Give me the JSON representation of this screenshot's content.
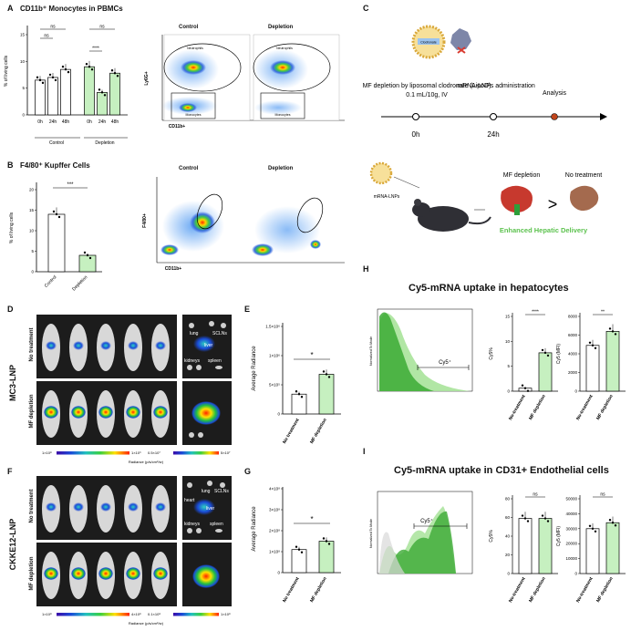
{
  "panels": {
    "A": "A",
    "B": "B",
    "C": "C",
    "D": "D",
    "E": "E",
    "F": "F",
    "G": "G",
    "H": "H",
    "I": "I"
  },
  "A": {
    "title": "CD11b⁺ Monocytes in PBMCs",
    "ylabel": "% of living cells",
    "yticks": [
      "0",
      "5",
      "10",
      "15"
    ],
    "xticks": [
      "0h",
      "24h",
      "48h",
      "0h",
      "24h",
      "48h"
    ],
    "groups": [
      "Control",
      "Depletion"
    ],
    "sig": [
      "ns",
      "ns",
      "****",
      "ns"
    ],
    "flow_titles": [
      "Control",
      "Depletion"
    ],
    "flow_y": "Ly6G+",
    "flow_x": "CD11b+",
    "gate_neutrophils": "Neutrophils",
    "gate_monocytes": "Monocytes"
  },
  "B": {
    "title": "F4/80⁺ Kupffer Cells",
    "ylabel": "% of living cells",
    "yticks": [
      "0",
      "5",
      "10",
      "15",
      "20"
    ],
    "xticks": [
      "Control",
      "Depletion"
    ],
    "sig": "***",
    "flow_titles": [
      "Control",
      "Depletion"
    ],
    "flow_y": "F4/80+",
    "flow_x": "CD11b+"
  },
  "C": {
    "drug_label": "Clodronate",
    "step1": "MF depletion by liposomal clodronate (LipoD)",
    "step1_dose": "0.1 mL/10g, IV",
    "step2": "mRNA-LNPs administration",
    "step3": "Analysis",
    "t0": "0h",
    "t1": "24h",
    "lnp_label": "mRNA-LNPs",
    "mf_depletion": "MF depletion",
    "no_treatment": "No treatment",
    "gt": ">",
    "enhanced": "Enhanced Hepatic Delivery"
  },
  "D": {
    "side_label": "MC3-LNP",
    "rows": [
      "No treatment",
      "MF depletion"
    ],
    "organs": [
      "lung",
      "SCLNs",
      "liver",
      "kidneys",
      "spleen"
    ],
    "scale1": [
      "1×10⁸",
      "1×10⁹"
    ],
    "scale2": [
      "0.5×10⁷",
      "5×10⁷"
    ],
    "radiance_label": "Radiance (p/s/cm²/sr)"
  },
  "E": {
    "ylabel": "Average Radiance",
    "yticks": [
      "0",
      "5×10⁵",
      "1×10⁶",
      "1.5×10⁶"
    ],
    "xticks": [
      "No treatment",
      "MF depletion"
    ],
    "sig": "*"
  },
  "F": {
    "side_label": "CKKE12-LNP",
    "rows": [
      "No treatment",
      "MF depletion"
    ],
    "organs": [
      "heart",
      "lung",
      "SCLNs",
      "liver",
      "kidneys",
      "spleen"
    ],
    "scale1": [
      "1×10⁸",
      "4×10⁸"
    ],
    "scale2": [
      "0.1×10⁸",
      "1×10⁸"
    ],
    "radiance_label": "Radiance (p/s/cm²/sr)"
  },
  "G": {
    "ylabel": "Average Radiance",
    "yticks": [
      "0",
      "1×10⁸",
      "2×10⁸",
      "3×10⁸",
      "4×10⁸"
    ],
    "xticks": [
      "No treatment",
      "MF depletion"
    ],
    "sig": "*"
  },
  "H": {
    "title": "Cy5-mRNA uptake in hepatocytes",
    "hist_y": "Normalized To Mode",
    "gate": "Cy5⁺",
    "bar1_ylabel": "Cy5%",
    "bar1_yticks": [
      "0",
      "5",
      "10",
      "15"
    ],
    "bar1_sig": "****",
    "bar2_ylabel": "Cy5 (MFI)",
    "bar2_yticks": [
      "0",
      "2000",
      "4000",
      "6000",
      "8000"
    ],
    "bar2_sig": "**",
    "xticks": [
      "No-treatment",
      "MF depletion"
    ]
  },
  "I": {
    "title": "Cy5-mRNA uptake  in CD31+ Endothelial cells",
    "hist_y": "Normalized To Mode",
    "gate": "Cy5⁺",
    "bar1_ylabel": "Cy5%",
    "bar1_yticks": [
      "0",
      "20",
      "40",
      "60",
      "80"
    ],
    "bar1_sig": "ns",
    "bar2_ylabel": "Cy5 (MFI)",
    "bar2_yticks": [
      "0",
      "10000",
      "20000",
      "30000",
      "40000",
      "50000"
    ],
    "bar2_sig": "ns",
    "xticks": [
      "No-treatment",
      "MF depletion"
    ]
  },
  "colors": {
    "control": "#ffffff",
    "depletion": "#c6f0c0",
    "accent_green": "#5cc24e",
    "analysis_dot": "#c0451c"
  },
  "chart_data": [
    {
      "type": "bar",
      "panel": "A",
      "categories": [
        "Control 0h",
        "Control 24h",
        "Control 48h",
        "Depletion 0h",
        "Depletion 24h",
        "Depletion 48h"
      ],
      "values": [
        6.5,
        7,
        8.5,
        9,
        4.2,
        7.8
      ],
      "ylabel": "% of living cells",
      "ylim": [
        0,
        15
      ]
    },
    {
      "type": "bar",
      "panel": "B",
      "categories": [
        "Control",
        "Depletion"
      ],
      "values": [
        14,
        4
      ],
      "ylabel": "% of living cells",
      "ylim": [
        0,
        20
      ]
    },
    {
      "type": "bar",
      "panel": "E",
      "categories": [
        "No treatment",
        "MF depletion"
      ],
      "values": [
        340000,
        680000
      ],
      "ylabel": "Average Radiance",
      "ylim": [
        0,
        1500000
      ]
    },
    {
      "type": "bar",
      "panel": "G",
      "categories": [
        "No treatment",
        "MF depletion"
      ],
      "values": [
        110000000,
        150000000
      ],
      "ylabel": "Average Radiance",
      "ylim": [
        0,
        400000000
      ]
    },
    {
      "type": "bar",
      "panel": "H-Cy5%",
      "categories": [
        "No-treatment",
        "MF depletion"
      ],
      "values": [
        0.6,
        7.7
      ],
      "ylabel": "Cy5%",
      "ylim": [
        0,
        15
      ]
    },
    {
      "type": "bar",
      "panel": "H-MFI",
      "categories": [
        "No-treatment",
        "MF depletion"
      ],
      "values": [
        4900,
        6400
      ],
      "ylabel": "Cy5 (MFI)",
      "ylim": [
        0,
        8000
      ]
    },
    {
      "type": "bar",
      "panel": "I-Cy5%",
      "categories": [
        "No-treatment",
        "MF depletion"
      ],
      "values": [
        59,
        59
      ],
      "ylabel": "Cy5%",
      "ylim": [
        0,
        80
      ]
    },
    {
      "type": "bar",
      "panel": "I-MFI",
      "categories": [
        "No-treatment",
        "MF depletion"
      ],
      "values": [
        30000,
        34000
      ],
      "ylabel": "Cy5 (MFI)",
      "ylim": [
        0,
        50000
      ]
    }
  ]
}
